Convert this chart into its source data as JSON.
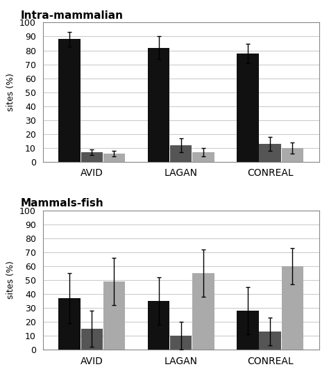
{
  "top_title": "Intra-mammalian",
  "bottom_title": "Mammals-fish",
  "ylabel": "sites (%)",
  "categories": [
    "AVID",
    "LAGAN",
    "CONREAL"
  ],
  "top": {
    "values": [
      [
        88,
        7,
        6
      ],
      [
        82,
        12,
        7
      ],
      [
        78,
        13,
        10
      ]
    ],
    "errors": [
      [
        5,
        2,
        2
      ],
      [
        8,
        5,
        3
      ],
      [
        7,
        5,
        4
      ]
    ]
  },
  "bottom": {
    "values": [
      [
        37,
        15,
        49
      ],
      [
        35,
        10,
        55
      ],
      [
        28,
        13,
        60
      ]
    ],
    "errors": [
      [
        18,
        13,
        17
      ],
      [
        17,
        10,
        17
      ],
      [
        17,
        10,
        13
      ]
    ]
  },
  "bar_colors": [
    "#111111",
    "#555555",
    "#aaaaaa"
  ],
  "bar_width": 0.25,
  "ylim": [
    0,
    100
  ],
  "yticks": [
    0,
    10,
    20,
    30,
    40,
    50,
    60,
    70,
    80,
    90,
    100
  ],
  "grid_color": "#cccccc",
  "background_color": "#ffffff",
  "title_fontsize": 11,
  "label_fontsize": 9,
  "tick_fontsize": 9,
  "cat_fontsize": 10
}
